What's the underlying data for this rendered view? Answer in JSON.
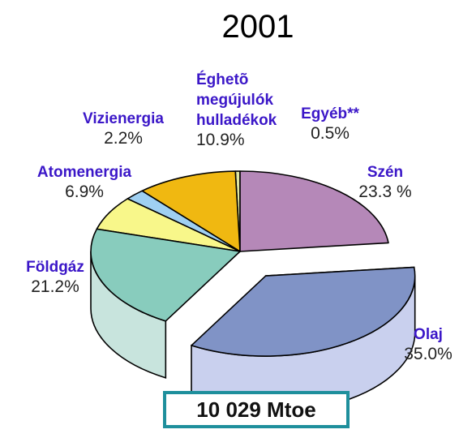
{
  "colors": {
    "label_name": "#3b17c8",
    "total_border": "#1e8f9c",
    "edge": "#000000"
  },
  "chart_data": {
    "type": "pie",
    "title": "2001",
    "slices": [
      {
        "name": "Szén",
        "value": 23.3,
        "label": "23.3 %",
        "color": "#b588b8",
        "side_color": "#e2c6e3"
      },
      {
        "name": "Olaj",
        "value": 35.0,
        "label": "35.0%",
        "color": "#8093c6",
        "side_color": "#c9d0ee",
        "exploded": true
      },
      {
        "name": "Földgáz",
        "value": 21.2,
        "label": "21.2%",
        "color": "#88ccbd",
        "side_color": "#c8e4dd"
      },
      {
        "name": "Atomenergia",
        "value": 6.9,
        "label": "6.9%",
        "color": "#f8f78a"
      },
      {
        "name": "Vizienergia",
        "value": 2.2,
        "label": "2.2%",
        "color": "#9fd0f2"
      },
      {
        "name": "Éghetõ megújulók hulladékok",
        "name_lines": [
          "Éghetõ",
          "megújulók",
          "hulladékok"
        ],
        "value": 10.9,
        "label": "10.9%",
        "color": "#f0b811"
      },
      {
        "name": "Egyéb**",
        "name_lines": [
          "Egyéb**"
        ],
        "value": 0.5,
        "label": "0.5%",
        "color": "#dfe6a0"
      }
    ],
    "total": "10 029 Mtoe"
  }
}
